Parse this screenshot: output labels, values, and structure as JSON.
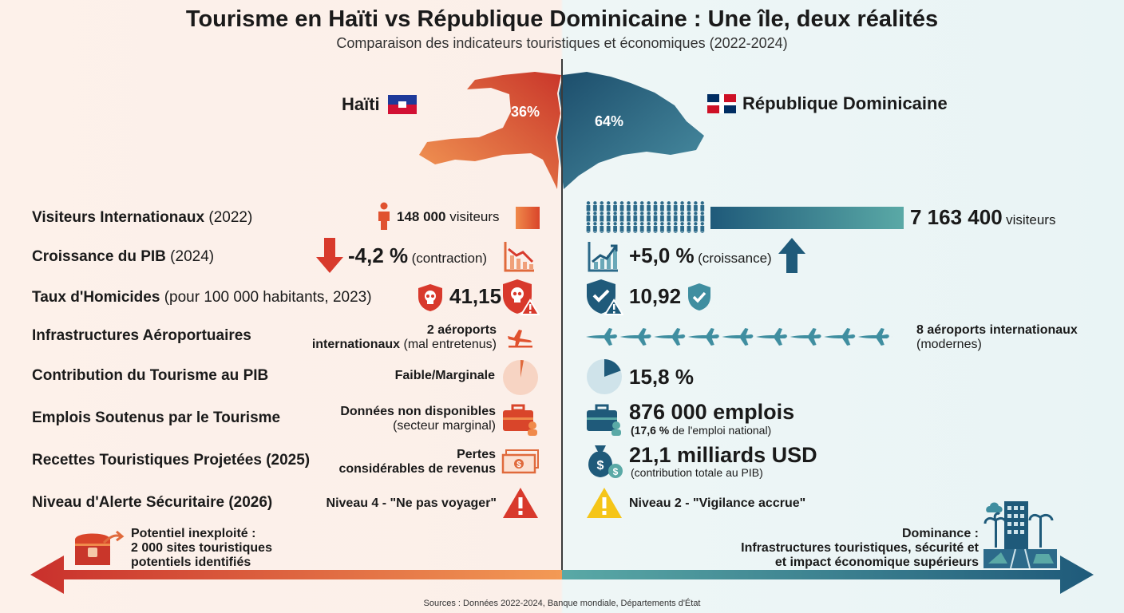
{
  "header": {
    "title": "Tourisme en Haïti vs République Dominicaine : Une île, deux réalités",
    "subtitle": "Comparaison des indicateurs touristiques et économiques (2022-2024)"
  },
  "map": {
    "haiti": {
      "name": "Haïti",
      "share": "36%",
      "color": "#d9452a"
    },
    "dr": {
      "name": "République Dominicaine",
      "share": "64%",
      "color": "#1f5a7a"
    }
  },
  "rows": [
    {
      "label": "Visiteurs Internationaux",
      "label_note": "(2022)",
      "haiti": {
        "value": "148 000",
        "unit": "visiteurs"
      },
      "dr": {
        "value": "7 163 400",
        "unit": "visiteurs"
      }
    },
    {
      "label": "Croissance du PIB",
      "label_note": "(2024)",
      "haiti": {
        "value": "-4,2 %",
        "note": "(contraction)"
      },
      "dr": {
        "value": "+5,0 %",
        "note": "(croissance)"
      }
    },
    {
      "label": "Taux d'Homicides",
      "label_note": "(pour 100 000 habitants, 2023)",
      "haiti": {
        "value": "41,15"
      },
      "dr": {
        "value": "10,92"
      }
    },
    {
      "label": "Infrastructures Aéroportuaires",
      "label_note": "",
      "haiti": {
        "line1": "2 aéroports",
        "line2_bold": "internationaux",
        "line2_note": "(mal entretenus)"
      },
      "dr": {
        "line1": "8 aéroports internationaux",
        "line2": "(modernes)"
      }
    },
    {
      "label": "Contribution du Tourisme au PIB",
      "label_note": "",
      "haiti": {
        "value": "Faible/Marginale"
      },
      "dr": {
        "value": "15,8 %"
      }
    },
    {
      "label": "Emplois Soutenus par le Tourisme",
      "label_note": "",
      "haiti": {
        "line1": "Données non disponibles",
        "line2": "(secteur marginal)"
      },
      "dr": {
        "value": "876 000 emplois",
        "note_bold": "(17,6 %",
        "note": "de l'emploi national)"
      }
    },
    {
      "label": "Recettes Touristiques Projetées (2025)",
      "label_note": "",
      "haiti": {
        "line1": "Pertes",
        "line2": "considérables de revenus"
      },
      "dr": {
        "value": "21,1 milliards USD",
        "note": "(contribution totale au PIB)"
      }
    },
    {
      "label": "Niveau d'Alerte Sécuritaire (2026)",
      "label_note": "",
      "haiti": {
        "value": "Niveau 4 - \"Ne pas voyager\""
      },
      "dr": {
        "value": "Niveau 2 - \"Vigilance accrue\""
      }
    }
  ],
  "footer": {
    "left": {
      "line1": "Potentiel inexploité :",
      "line2": "2 000 sites touristiques",
      "line3": "potentiels identifiés"
    },
    "right": {
      "line1": "Dominance :",
      "line2": "Infrastructures touristiques, sécurité et",
      "line3": "et impact économique supérieurs"
    },
    "sources": "Sources : Données 2022-2024, Banque mondiale, Départements d'État"
  },
  "colors": {
    "haiti": "#d9452a",
    "haiti_light": "#f08a4b",
    "dr": "#1f5a7a",
    "dr_light": "#5aa9a6",
    "warning": "#f5c518"
  },
  "icons": {
    "haiti": [
      "person-icon",
      "chart-down-icon",
      "shield-skull-icon",
      "plane-icon",
      "pie-icon",
      "briefcase-icon",
      "cash-icon",
      "warning-icon"
    ],
    "dr": [
      "people-icon",
      "chart-up-icon",
      "shield-check-icon",
      "planes-icon",
      "pie-icon",
      "briefcase-icon",
      "money-bag-icon",
      "warning-icon"
    ]
  }
}
